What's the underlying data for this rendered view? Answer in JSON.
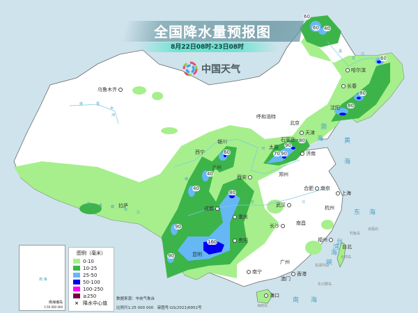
{
  "header": {
    "title": "全国降水量预报图",
    "subtitle": "8月22日08时-23日08时",
    "logo_text": "中国天气",
    "logo_icon": "swirl-logo-icon"
  },
  "cities": [
    "乌鲁木齐",
    "哈尔滨",
    "长春",
    "沈阳",
    "呼和浩特",
    "北京",
    "天津",
    "石家庄",
    "太原",
    "济南",
    "银川",
    "西宁",
    "兰州",
    "郑州",
    "西安",
    "拉萨",
    "成都",
    "重庆",
    "武汉",
    "合肥",
    "南京",
    "上海",
    "杭州",
    "长沙",
    "南昌",
    "贵阳",
    "昆明",
    "福州",
    "台北",
    "南宁",
    "广州",
    "香港",
    "澳门",
    "海口"
  ],
  "seas": [
    "渤",
    "海",
    "黄",
    "海",
    "东",
    "海",
    "台",
    "湾",
    "海",
    "峡",
    "南",
    "海"
  ],
  "islands": [
    "台湾岛",
    "澎湖列岛",
    "钓鱼岛",
    "赤尾屿",
    "东沙群岛",
    "海南岛"
  ],
  "rivers": [
    "黑",
    "龙",
    "江",
    "塔",
    "里",
    "木",
    "河",
    "黄",
    "河",
    "长",
    "江",
    "雅",
    "鲁",
    "藏",
    "布",
    "江"
  ],
  "rain_centers": [
    "60",
    "60",
    "40",
    "60",
    "80",
    "80",
    "80",
    "90",
    "70",
    "90",
    "60",
    "40",
    "40",
    "80",
    "90",
    "160",
    "90"
  ],
  "legend": {
    "title": "图例（毫米）",
    "items": [
      {
        "label": "0-10",
        "color": "#a6ef8c"
      },
      {
        "label": "10-25",
        "color": "#3cb44a"
      },
      {
        "label": "25-50",
        "color": "#66b8f5"
      },
      {
        "label": "50-100",
        "color": "#0000f0"
      },
      {
        "label": "100-250",
        "color": "#ff00ff"
      },
      {
        "label": "≥250",
        "color": "#7a0040"
      }
    ],
    "center_label": "降水中心值",
    "center_icon": "cross-marker-icon"
  },
  "inset": {
    "name": "南海诸岛",
    "scale": "1:50 000 000",
    "sea": "南 海"
  },
  "footer": {
    "source": "数据来源：中央气象台",
    "scale": "比例尺1:25 000 000",
    "approval": "审图号:GS(2021)6952号"
  }
}
